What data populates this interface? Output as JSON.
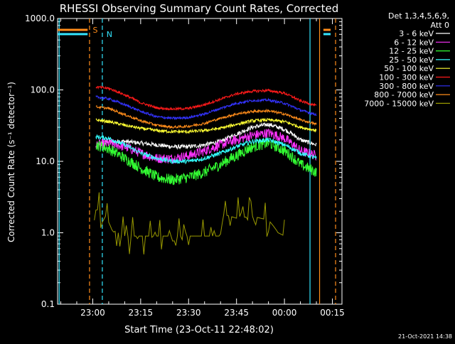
{
  "chart_data": {
    "type": "line",
    "title": "RHESSI Observing Summary Count Rates, Corrected",
    "xlabel": "Start Time (23-Oct-11 22:48:02)",
    "ylabel": "Corrected Count Rate (s⁻¹ detector⁻¹)",
    "yscale": "log",
    "ylim": [
      0.1,
      1000
    ],
    "xlim_minutes": [
      -11,
      78
    ],
    "x_tick_labels": [
      "23:00",
      "23:15",
      "23:30",
      "23:45",
      "00:00",
      "00:15"
    ],
    "x_tick_minutes": [
      0,
      15,
      30,
      45,
      60,
      75
    ],
    "y_tick_labels": [
      "0.1",
      "1.0",
      "10.0",
      "100.0",
      "1000.0"
    ],
    "y_tick_values": [
      0.1,
      1,
      10,
      100,
      1000
    ],
    "legend_header": [
      "Det 1,3,4,5,6,9,",
      "Att 0"
    ],
    "legend_placement": "right",
    "footer_date": "21-Oct-2021 14:38",
    "markers": [
      {
        "label": "S",
        "color": "#ff8c1a"
      },
      {
        "label": "N",
        "color": "#33e6ff"
      }
    ],
    "vertical_lines": [
      {
        "x": -10.5,
        "color": "#33e6ff",
        "style": "solid"
      },
      {
        "x": -1,
        "color": "#ff8c1a",
        "style": "dashed"
      },
      {
        "x": 3,
        "color": "#33e6ff",
        "style": "dashed"
      },
      {
        "x": 68,
        "color": "#33e6ff",
        "style": "solid"
      },
      {
        "x": 71,
        "color": "#ff8c1a",
        "style": "solid"
      },
      {
        "x": 76,
        "color": "#ff8c1a",
        "style": "dashed"
      }
    ],
    "time_x": [
      1,
      5,
      10,
      15,
      20,
      25,
      30,
      35,
      40,
      45,
      50,
      55,
      60,
      65,
      70
    ],
    "series": [
      {
        "name": "3 - 6 keV",
        "color": "#ffffff",
        "noise": 0.07,
        "values": [
          16,
          19,
          19,
          18,
          17,
          16,
          16,
          17,
          19,
          24,
          30,
          33,
          28,
          20,
          17
        ]
      },
      {
        "name": "6 - 12 keV",
        "color": "#ff33ff",
        "noise": 0.16,
        "values": [
          17,
          18,
          16,
          13,
          11,
          11,
          12,
          14,
          17,
          20,
          23,
          25,
          21,
          14,
          12
        ]
      },
      {
        "name": "12 - 25 keV",
        "color": "#33ff33",
        "noise": 0.18,
        "values": [
          17,
          15,
          11,
          8,
          6,
          5.5,
          6,
          7,
          9,
          12,
          16,
          18,
          14,
          9,
          7
        ]
      },
      {
        "name": "25 - 50 keV",
        "color": "#33ffff",
        "noise": 0.07,
        "values": [
          22,
          21,
          17,
          13,
          11,
          10,
          10,
          11,
          13,
          16,
          19,
          20,
          17,
          13,
          11
        ]
      },
      {
        "name": "50 - 100 keV",
        "color": "#ffff33",
        "noise": 0.05,
        "values": [
          38,
          36,
          32,
          29,
          27,
          26,
          26,
          27,
          29,
          33,
          37,
          38,
          36,
          30,
          27
        ]
      },
      {
        "name": "100 - 300 keV",
        "color": "#ff1a1a",
        "noise": 0.04,
        "values": [
          110,
          105,
          85,
          66,
          56,
          54,
          55,
          62,
          74,
          88,
          96,
          98,
          90,
          70,
          60
        ]
      },
      {
        "name": "300 - 800 keV",
        "color": "#3333ff",
        "noise": 0.04,
        "values": [
          80,
          75,
          62,
          50,
          42,
          40,
          41,
          46,
          55,
          65,
          71,
          72,
          65,
          52,
          45
        ]
      },
      {
        "name": "800 - 7000 keV",
        "color": "#ff8c1a",
        "noise": 0.04,
        "values": [
          58,
          55,
          45,
          37,
          32,
          30,
          31,
          34,
          40,
          46,
          50,
          51,
          46,
          38,
          33
        ]
      },
      {
        "name": "7000 - 15000 keV",
        "color": "#999900",
        "noise": 0.0,
        "step": true,
        "x": [
          0.5,
          2,
          3,
          4,
          6,
          10,
          15,
          20,
          30,
          40,
          41,
          45,
          50,
          55,
          58,
          60
        ],
        "values": [
          1.5,
          2.4,
          1.4,
          1.7,
          1.1,
          0.9,
          0.9,
          0.9,
          0.9,
          0.9,
          1.8,
          1.6,
          1.7,
          1.5,
          1.0,
          0.9
        ]
      }
    ]
  }
}
